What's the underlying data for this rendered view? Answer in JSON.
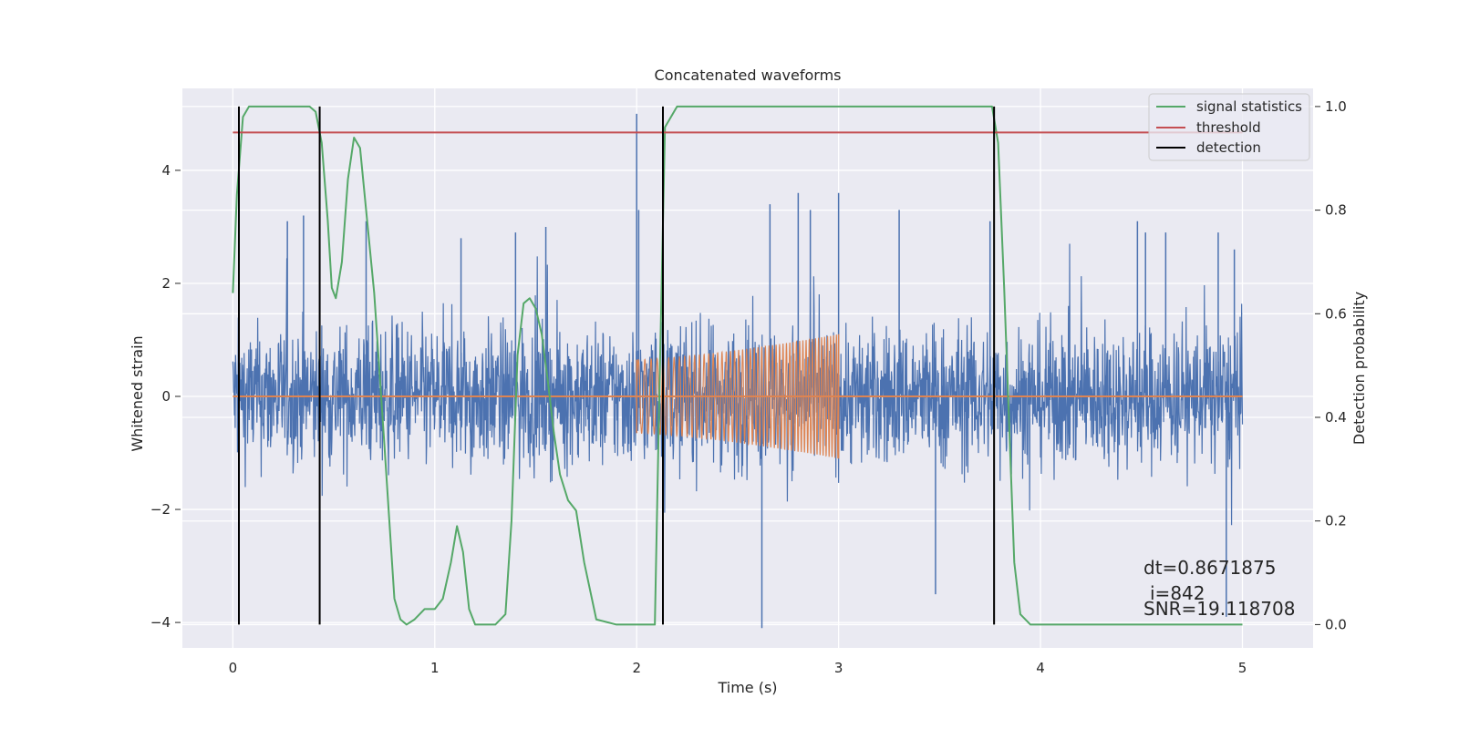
{
  "chart_data": {
    "type": "line",
    "title": "Concatenated waveforms",
    "xlabel": "Time (s)",
    "ylabel_left": "Whitened strain",
    "ylabel_right": "Detection probability",
    "xlim": [
      -0.25,
      5.35
    ],
    "ylim_left": [
      -4.45,
      5.45
    ],
    "ylim_right": [
      -0.045,
      1.035
    ],
    "x_ticks": [
      0,
      1,
      2,
      3,
      4,
      5
    ],
    "x_tick_labels": [
      "0",
      "1",
      "2",
      "3",
      "4",
      "5"
    ],
    "y_ticks_left": [
      -4,
      -2,
      0,
      2,
      4
    ],
    "y_tick_labels_left": [
      "−4",
      "−2",
      "0",
      "2",
      "4"
    ],
    "y_ticks_right": [
      0.0,
      0.2,
      0.4,
      0.6,
      0.8,
      1.0
    ],
    "y_tick_labels_right": [
      "0.0",
      "0.2",
      "0.4",
      "0.6",
      "0.8",
      "1.0"
    ],
    "grid": true,
    "legend_position": "top-right",
    "legend": [
      {
        "label": "signal statistics",
        "color": "#55a868"
      },
      {
        "label": "threshold",
        "color": "#c44e52"
      },
      {
        "label": "detection",
        "color": "#000000"
      }
    ],
    "series": [
      {
        "axis": "left",
        "color": "#4c72b0",
        "description_kind": "noise",
        "x_range": [
          0,
          5
        ],
        "envelope": [
          -2.3,
          2.7
        ],
        "spike_points": [
          [
            0.27,
            3.1
          ],
          [
            0.35,
            3.2
          ],
          [
            0.66,
            3.1
          ],
          [
            1.13,
            2.8
          ],
          [
            1.4,
            2.9
          ],
          [
            1.55,
            3.0
          ],
          [
            2.0,
            5.0
          ],
          [
            2.01,
            3.3
          ],
          [
            2.62,
            -4.1
          ],
          [
            2.66,
            3.4
          ],
          [
            2.8,
            3.6
          ],
          [
            2.86,
            3.3
          ],
          [
            3.0,
            3.6
          ],
          [
            3.3,
            3.3
          ],
          [
            3.48,
            -3.5
          ],
          [
            3.75,
            3.1
          ],
          [
            4.48,
            3.1
          ],
          [
            4.52,
            2.9
          ],
          [
            4.62,
            2.9
          ],
          [
            4.88,
            2.9
          ],
          [
            4.92,
            -3.9
          ],
          [
            4.96,
            2.6
          ]
        ]
      },
      {
        "axis": "left",
        "color": "#dd8452",
        "description_kind": "chirp",
        "points": [
          [
            0,
            0
          ],
          [
            2.0,
            0
          ],
          [
            2.0,
            0.65
          ],
          [
            2.5,
            0.8
          ],
          [
            3.0,
            1.1
          ],
          [
            3.0,
            0
          ],
          [
            5.0,
            0
          ]
        ]
      },
      {
        "axis": "right",
        "name": "signal statistics",
        "color": "#55a868",
        "x": [
          0,
          0.02,
          0.05,
          0.08,
          0.12,
          0.2,
          0.3,
          0.38,
          0.41,
          0.44,
          0.47,
          0.49,
          0.51,
          0.54,
          0.57,
          0.6,
          0.63,
          0.66,
          0.7,
          0.75,
          0.8,
          0.83,
          0.86,
          0.9,
          0.95,
          1.0,
          1.04,
          1.08,
          1.11,
          1.14,
          1.17,
          1.2,
          1.25,
          1.3,
          1.35,
          1.38,
          1.41,
          1.44,
          1.47,
          1.5,
          1.53,
          1.56,
          1.59,
          1.62,
          1.66,
          1.7,
          1.74,
          1.8,
          1.9,
          2.0,
          2.09,
          2.11,
          2.14,
          2.2,
          2.5,
          3.0,
          3.5,
          3.7,
          3.76,
          3.79,
          3.82,
          3.85,
          3.87,
          3.9,
          3.95,
          4.2,
          4.6,
          5.0
        ],
        "y": [
          0.64,
          0.83,
          0.98,
          1.0,
          1.0,
          1.0,
          1.0,
          1.0,
          0.99,
          0.93,
          0.78,
          0.65,
          0.63,
          0.7,
          0.86,
          0.94,
          0.92,
          0.8,
          0.64,
          0.35,
          0.05,
          0.01,
          0.0,
          0.01,
          0.03,
          0.03,
          0.05,
          0.12,
          0.19,
          0.14,
          0.03,
          0.0,
          0.0,
          0.0,
          0.02,
          0.2,
          0.52,
          0.62,
          0.63,
          0.61,
          0.56,
          0.47,
          0.37,
          0.29,
          0.24,
          0.22,
          0.12,
          0.01,
          0.0,
          0.0,
          0.0,
          0.4,
          0.96,
          1.0,
          1.0,
          1.0,
          1.0,
          1.0,
          1.0,
          0.93,
          0.65,
          0.33,
          0.12,
          0.02,
          0.0,
          0.0,
          0.0,
          0.0
        ]
      },
      {
        "axis": "right",
        "name": "threshold",
        "color": "#c44e52",
        "x": [
          0,
          5
        ],
        "y": [
          0.95,
          0.95
        ]
      }
    ],
    "detections": [
      0.03,
      0.43,
      2.13,
      3.77
    ],
    "annotations": [
      "dt=0.8671875",
      "i=842",
      "SNR=19.118708"
    ]
  }
}
